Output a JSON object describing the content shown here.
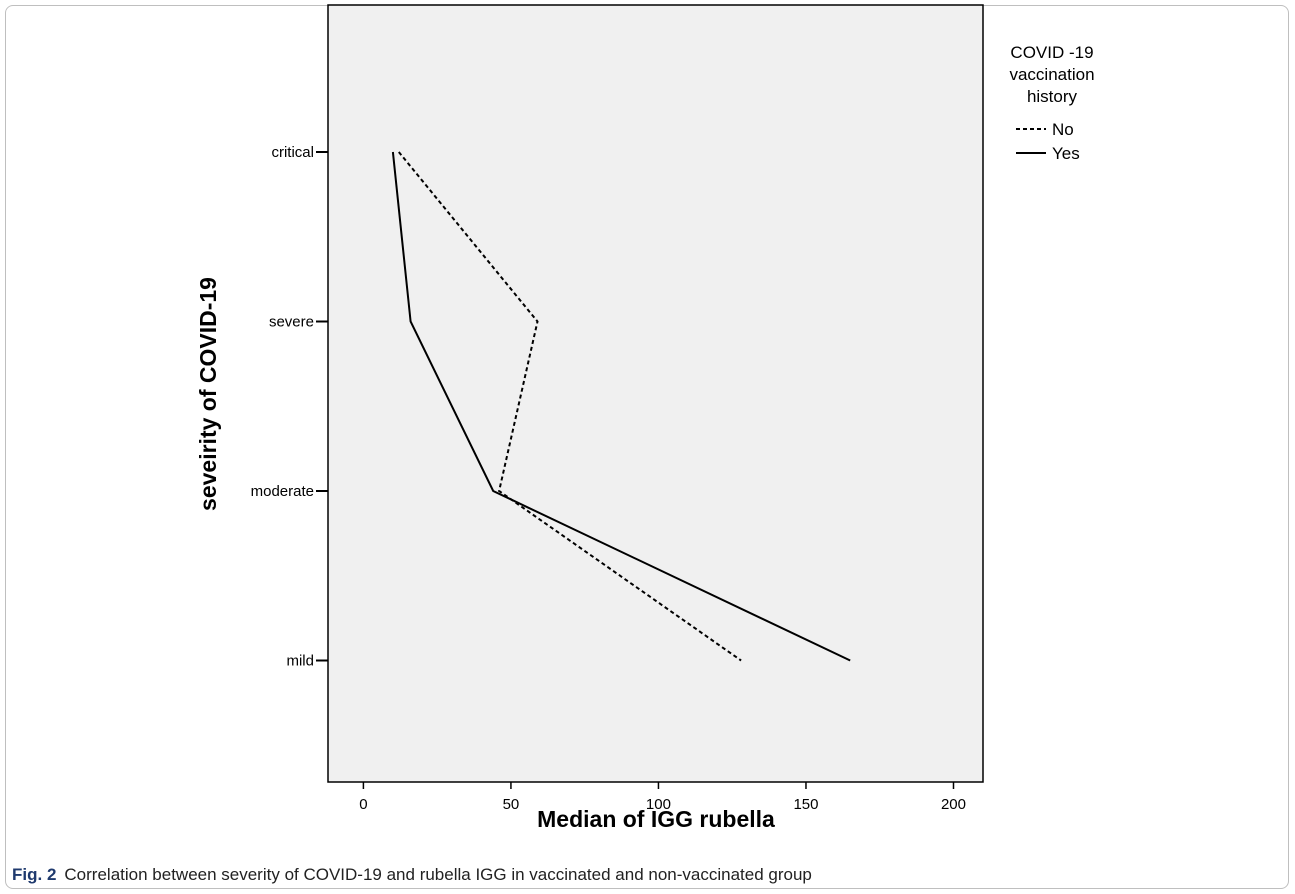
{
  "chart_data": {
    "type": "line",
    "xlabel": "Median of  IGG rubella",
    "ylabel": "seveirity of COVID-19",
    "xlim": [
      -12,
      210
    ],
    "x_ticks": [
      0,
      50,
      100,
      150,
      200
    ],
    "categories": [
      "critical",
      "severe",
      "moderate",
      "mild"
    ],
    "legend": {
      "title_lines": [
        "COVID -19",
        "vaccination",
        "history"
      ],
      "placement": "right"
    },
    "series": [
      {
        "name": "No",
        "style": "dashed",
        "values": [
          12,
          59,
          46,
          128
        ]
      },
      {
        "name": "Yes",
        "style": "solid",
        "values": [
          10,
          16,
          44,
          165
        ]
      }
    ],
    "plot_background": "#f0f0f0",
    "grid": false
  },
  "caption": {
    "label": "Fig. 2",
    "text": "Correlation between severity of COVID-19 and rubella IGG in vaccinated and non-vaccinated group"
  },
  "colors": {
    "caption_label": "#1f3a6e",
    "line": "#000000"
  }
}
